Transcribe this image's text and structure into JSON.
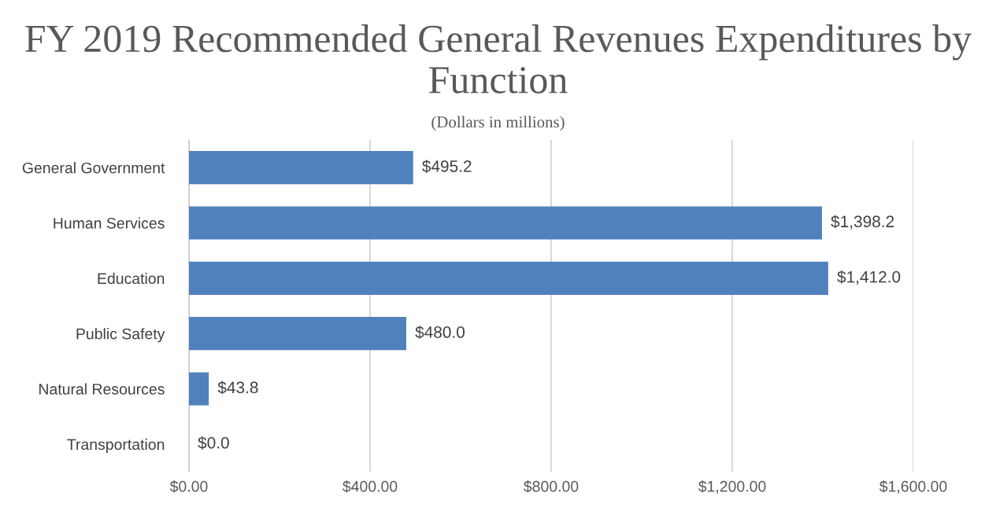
{
  "chart_data": {
    "type": "bar",
    "orientation": "horizontal",
    "title": "FY 2019 Recommended General Revenues Expenditures by Function",
    "subtitle": "(Dollars in millions)",
    "categories": [
      "General Government",
      "Human Services",
      "Education",
      "Public Safety",
      "Natural Resources",
      "Transportation"
    ],
    "values": [
      495.2,
      1398.2,
      1412.0,
      480.0,
      43.8,
      0.0
    ],
    "value_labels": [
      "$495.2",
      "$1,398.2",
      "$1,412.0",
      "$480.0",
      "$43.8",
      "$0.0"
    ],
    "color": "#4f81bd",
    "xlim": [
      0,
      1600
    ],
    "xticks": [
      {
        "value": 0,
        "label": "$0.00"
      },
      {
        "value": 400,
        "label": "$400.00"
      },
      {
        "value": 800,
        "label": "$800.00"
      },
      {
        "value": 1200,
        "label": "$1,200.00"
      },
      {
        "value": 1600,
        "label": "$1,600.00"
      }
    ],
    "grid": "x",
    "legend": false
  }
}
